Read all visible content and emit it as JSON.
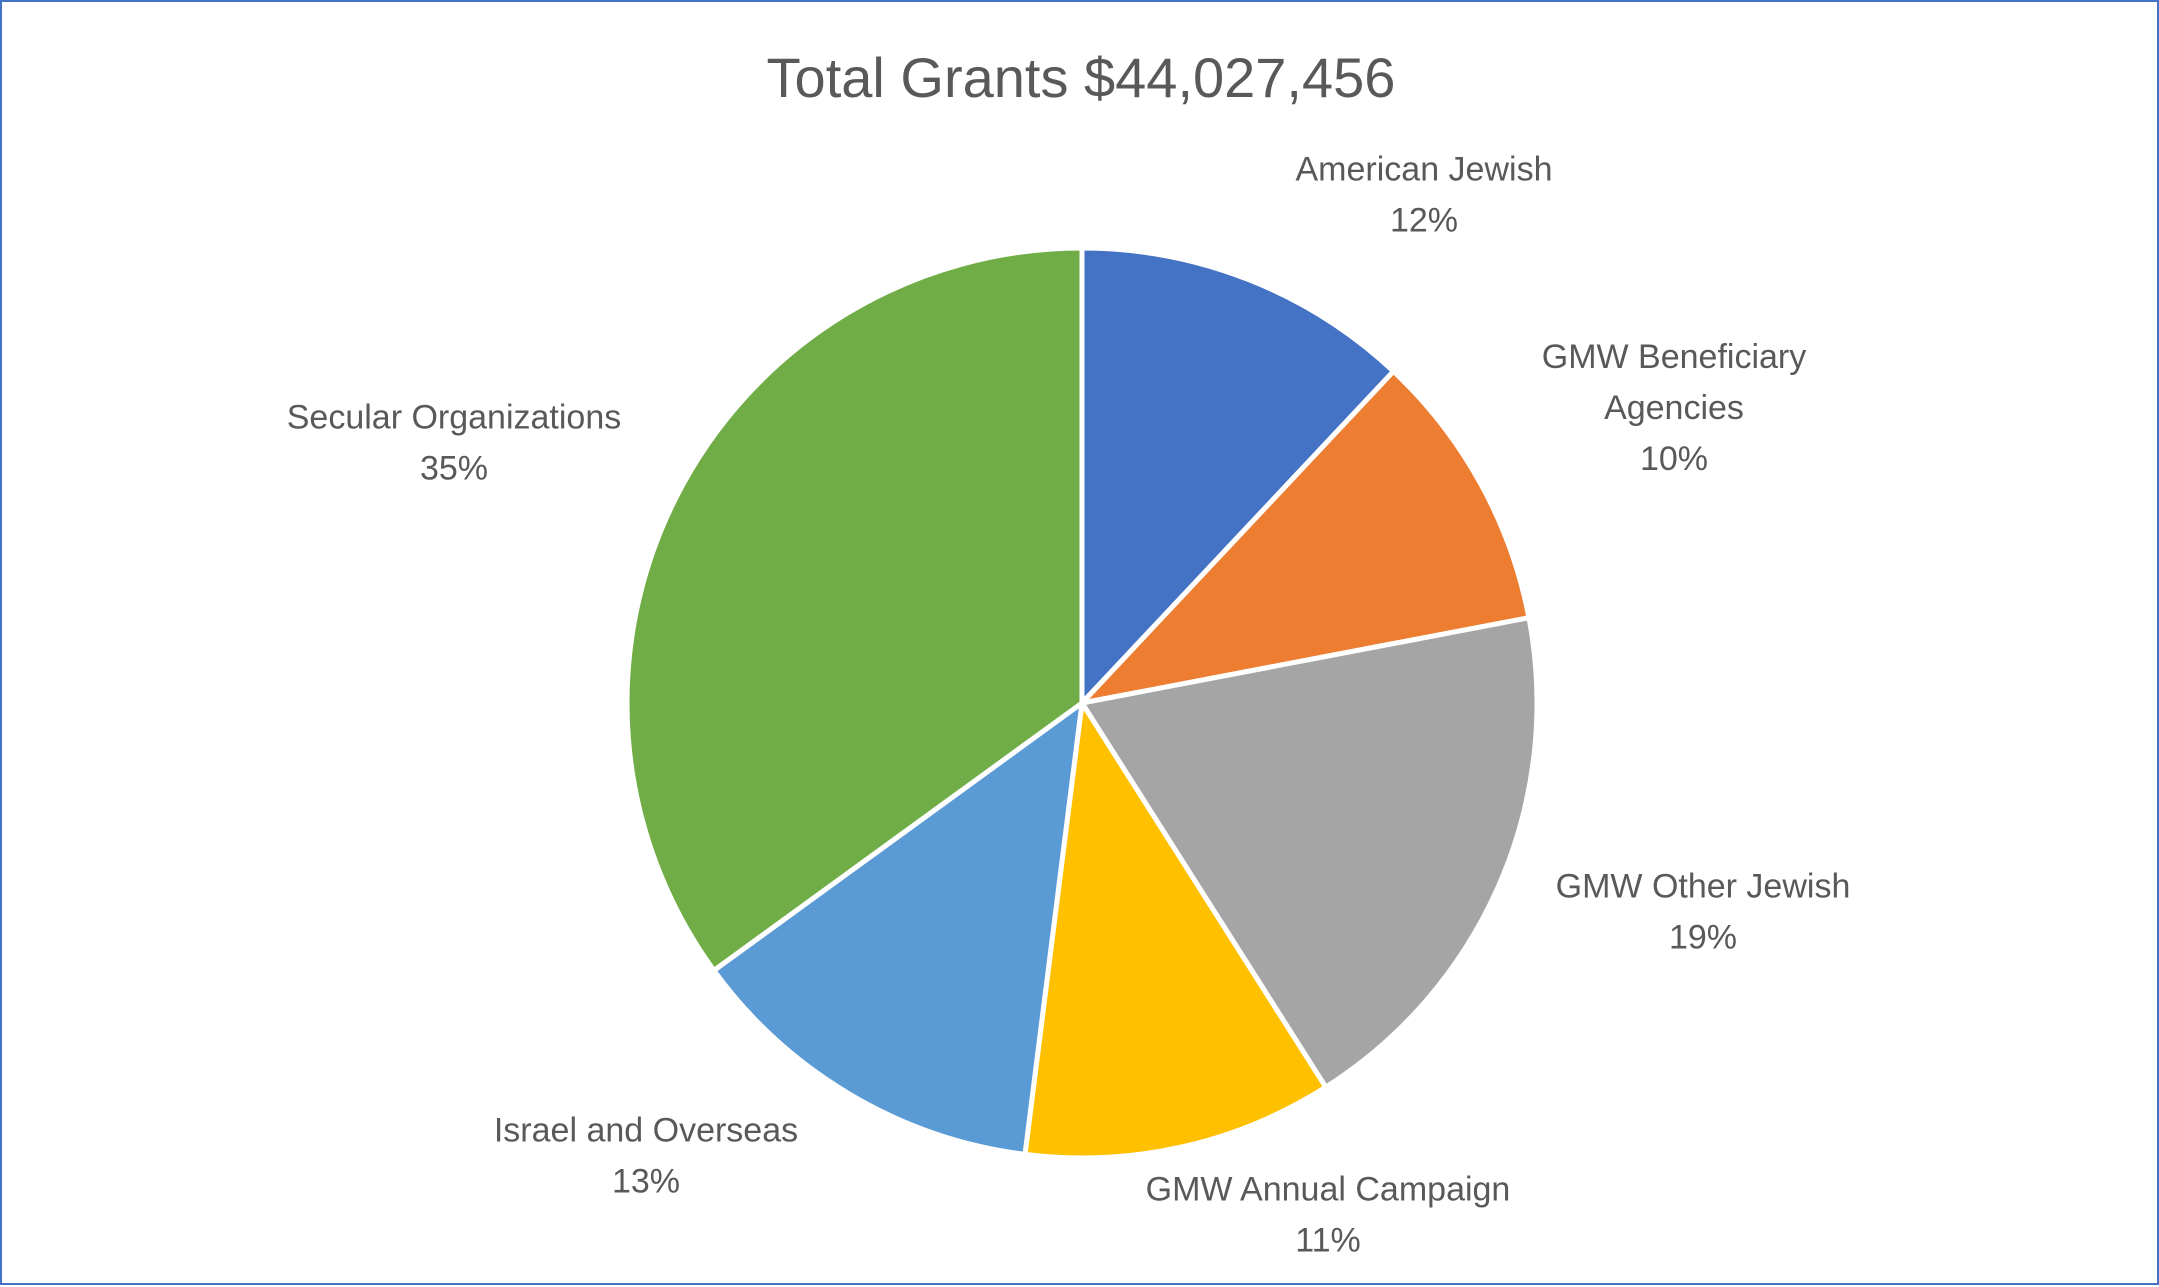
{
  "chart_data": {
    "type": "pie",
    "title": "Total Grants $44,027,456",
    "categories": [
      "American Jewish",
      "GMW Beneficiary Agencies",
      "GMW Other Jewish",
      "GMW Annual Campaign",
      "Israel and Overseas",
      "Secular Organizations"
    ],
    "label_lines": [
      [
        "American Jewish"
      ],
      [
        "GMW Beneficiary",
        "Agencies"
      ],
      [
        "GMW Other Jewish"
      ],
      [
        "GMW Annual Campaign"
      ],
      [
        "Israel and Overseas"
      ],
      [
        "Secular Organizations"
      ]
    ],
    "values": [
      12,
      10,
      19,
      11,
      13,
      35
    ],
    "percent_labels": [
      "12%",
      "10%",
      "19%",
      "11%",
      "13%",
      "35%"
    ],
    "colors": [
      "#4472C4",
      "#ED7D31",
      "#A5A5A5",
      "#FFC000",
      "#5B9BD5",
      "#70AD47"
    ],
    "legend": "none",
    "data_labels": "outside"
  }
}
